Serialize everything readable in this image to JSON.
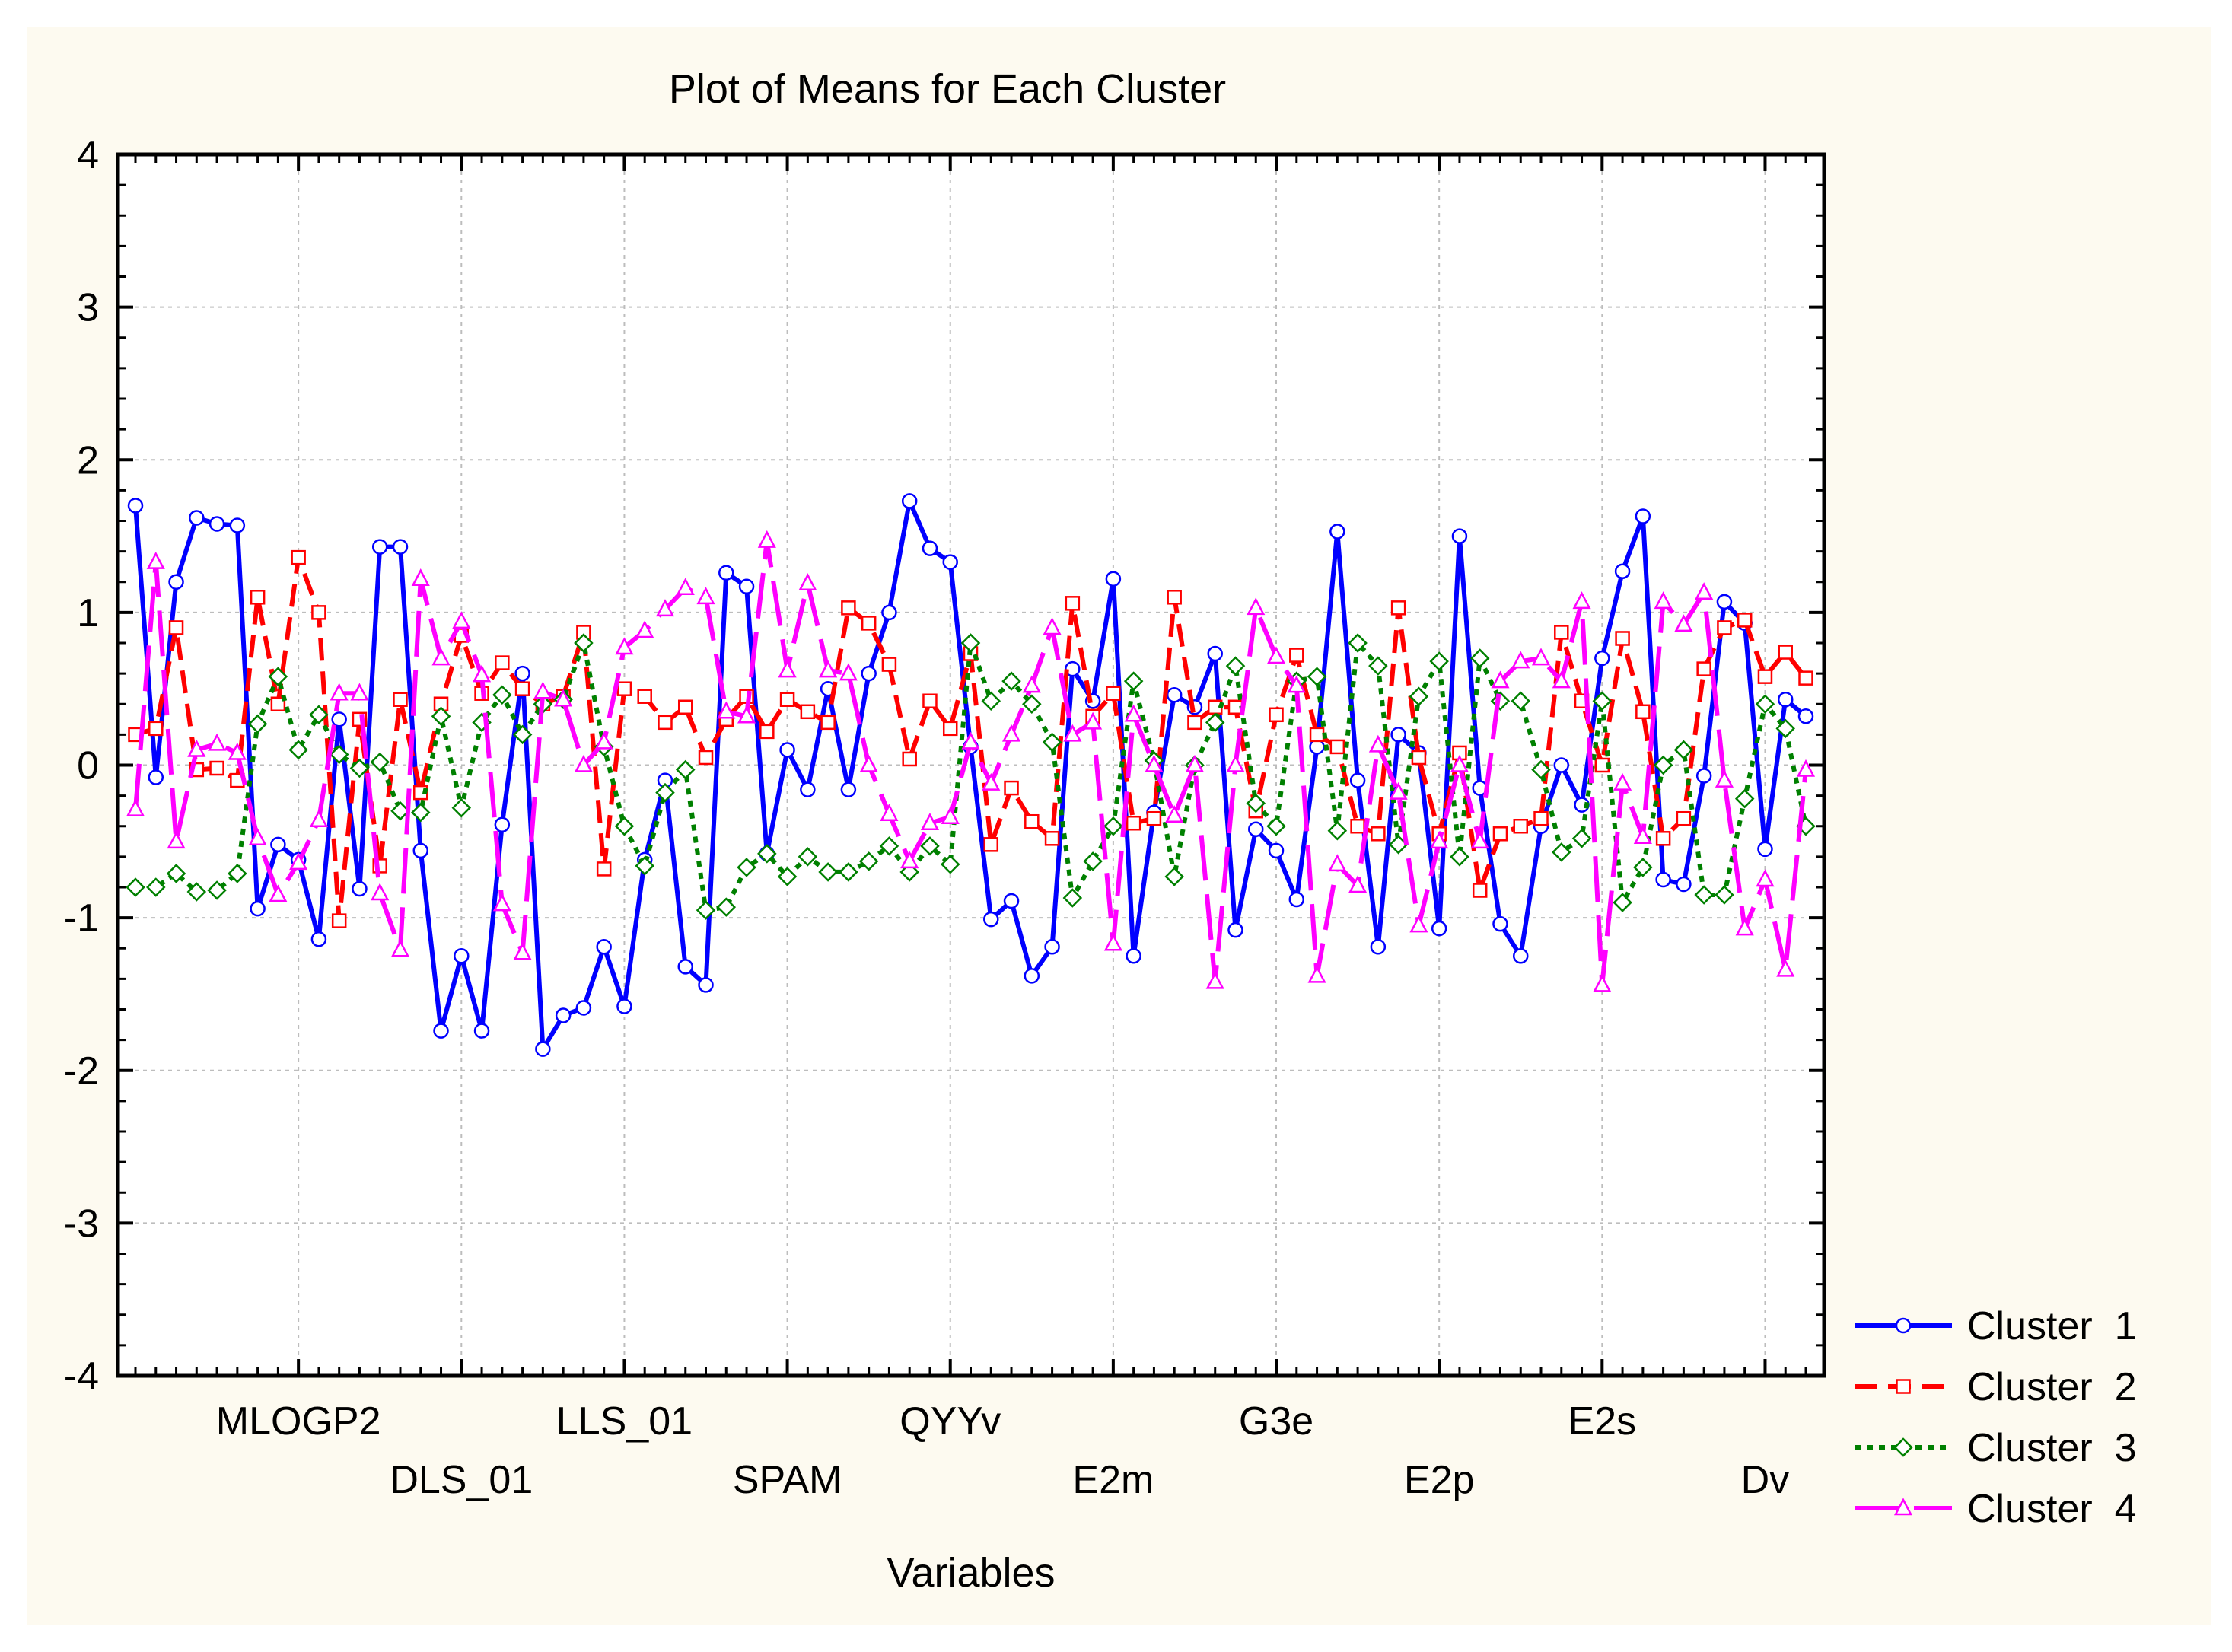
{
  "chart_data": {
    "type": "line",
    "title": "Plot of Means for Each Cluster",
    "xlabel": "Variables",
    "ylabel": "",
    "ylim": [
      -4,
      4
    ],
    "yticks": [
      -4,
      -3,
      -2,
      -1,
      0,
      1,
      2,
      3,
      4
    ],
    "x_tick_labels": [
      {
        "label": "MLOGP2",
        "index": 8
      },
      {
        "label": "DLS_01",
        "index": 16
      },
      {
        "label": "LLS_01",
        "index": 24
      },
      {
        "label": "SPAM",
        "index": 32
      },
      {
        "label": "QYYv",
        "index": 40
      },
      {
        "label": "E2m",
        "index": 48
      },
      {
        "label": "G3e",
        "index": 56
      },
      {
        "label": "E2p",
        "index": 64
      },
      {
        "label": "E2s",
        "index": 72
      },
      {
        "label": "Dv",
        "index": 80
      }
    ],
    "grid": true,
    "legend_position": "bottom-right",
    "background_color": "#fdfaf0",
    "series": [
      {
        "name": "Cluster  1",
        "color": "#0000ff",
        "marker": "circle",
        "dash": "solid",
        "values": [
          1.7,
          -0.08,
          1.2,
          1.62,
          1.58,
          1.57,
          -0.94,
          -0.52,
          -0.62,
          -1.14,
          0.3,
          -0.81,
          1.43,
          1.43,
          -0.56,
          -1.74,
          -1.25,
          -1.74,
          -0.39,
          0.6,
          -1.86,
          -1.64,
          -1.59,
          -1.19,
          -1.58,
          -0.62,
          -0.1,
          -1.32,
          -1.44,
          1.26,
          1.17,
          -0.58,
          0.1,
          -0.16,
          0.5,
          -0.16,
          0.6,
          1.0,
          1.73,
          1.42,
          1.33,
          0.12,
          -1.01,
          -0.89,
          -1.38,
          -1.19,
          0.63,
          0.42,
          1.22,
          -1.25,
          -0.31,
          0.46,
          0.38,
          0.73,
          -1.08,
          -0.42,
          -0.56,
          -0.88,
          0.12,
          1.53,
          -0.1,
          -1.19,
          0.2,
          0.08,
          -1.07,
          1.5,
          -0.15,
          -1.04,
          -1.25,
          -0.4,
          0.0,
          -0.26,
          0.7,
          1.27,
          1.63,
          -0.75,
          -0.78,
          -0.07,
          1.07,
          0.93,
          -0.55,
          0.43,
          0.32
        ]
      },
      {
        "name": "Cluster  2",
        "color": "#ff0000",
        "marker": "square",
        "dash": "dashed",
        "values": [
          0.2,
          0.24,
          0.9,
          -0.03,
          -0.02,
          -0.1,
          1.1,
          0.4,
          1.36,
          1.0,
          -1.02,
          0.3,
          -0.66,
          0.43,
          -0.18,
          0.4,
          0.85,
          0.47,
          0.67,
          0.5,
          0.4,
          0.45,
          0.87,
          -0.68,
          0.5,
          0.45,
          0.28,
          0.38,
          0.05,
          0.3,
          0.45,
          0.22,
          0.43,
          0.35,
          0.28,
          1.03,
          0.93,
          0.66,
          0.04,
          0.42,
          0.24,
          0.73,
          -0.52,
          -0.15,
          -0.37,
          -0.48,
          1.06,
          0.32,
          0.47,
          -0.38,
          -0.35,
          1.1,
          0.28,
          0.38,
          0.38,
          -0.3,
          0.33,
          0.72,
          0.2,
          0.12,
          -0.4,
          -0.45,
          1.03,
          0.05,
          -0.45,
          0.08,
          -0.82,
          -0.45,
          -0.4,
          -0.35,
          0.87,
          0.42,
          0.0,
          0.83,
          0.35,
          -0.48,
          -0.35,
          0.63,
          0.9,
          0.95,
          0.58,
          0.74,
          0.57
        ]
      },
      {
        "name": "Cluster  3",
        "color": "#008000",
        "marker": "diamond",
        "dash": "dotted",
        "values": [
          -0.8,
          -0.8,
          -0.71,
          -0.83,
          -0.82,
          -0.71,
          0.27,
          0.58,
          0.1,
          0.33,
          0.07,
          -0.02,
          0.02,
          -0.3,
          -0.31,
          0.32,
          -0.28,
          0.28,
          0.46,
          0.2,
          0.4,
          0.43,
          0.8,
          0.12,
          -0.4,
          -0.66,
          -0.18,
          -0.03,
          -0.95,
          -0.93,
          -0.67,
          -0.58,
          -0.73,
          -0.6,
          -0.7,
          -0.7,
          -0.63,
          -0.53,
          -0.7,
          -0.53,
          -0.65,
          0.8,
          0.42,
          0.55,
          0.4,
          0.15,
          -0.87,
          -0.63,
          -0.4,
          0.55,
          0.03,
          -0.73,
          0.0,
          0.28,
          0.65,
          -0.25,
          -0.4,
          0.55,
          0.58,
          -0.43,
          0.8,
          0.65,
          -0.52,
          0.45,
          0.68,
          -0.6,
          0.7,
          0.42,
          0.42,
          -0.03,
          -0.57,
          -0.48,
          0.42,
          -0.9,
          -0.67,
          0.0,
          0.1,
          -0.85,
          -0.85,
          -0.22,
          0.4,
          0.24,
          -0.4
        ]
      },
      {
        "name": "Cluster  4",
        "color": "#ff00ff",
        "marker": "triangle",
        "dash": "longdash",
        "values": [
          -0.29,
          1.33,
          -0.5,
          0.1,
          0.14,
          0.08,
          -0.48,
          -0.85,
          -0.64,
          -0.36,
          0.47,
          0.47,
          -0.84,
          -1.21,
          1.22,
          0.7,
          0.94,
          0.59,
          -0.91,
          -1.23,
          0.48,
          0.43,
          0.0,
          0.15,
          0.77,
          0.88,
          1.02,
          1.16,
          1.1,
          0.35,
          0.32,
          1.47,
          0.62,
          1.19,
          0.62,
          0.6,
          0.0,
          -0.32,
          -0.63,
          -0.38,
          -0.34,
          0.15,
          -0.12,
          0.2,
          0.52,
          0.9,
          0.2,
          0.28,
          -1.17,
          0.33,
          0.0,
          -0.33,
          0.0,
          -1.42,
          0.0,
          1.03,
          0.71,
          0.52,
          -1.38,
          -0.65,
          -0.79,
          0.13,
          -0.18,
          -1.05,
          -0.5,
          0.0,
          -0.5,
          0.55,
          0.68,
          0.7,
          0.55,
          1.07,
          -1.44,
          -0.12,
          -0.47,
          1.07,
          0.92,
          1.13,
          -0.1,
          -1.07,
          -0.75,
          -1.34,
          -0.03
        ]
      }
    ]
  }
}
